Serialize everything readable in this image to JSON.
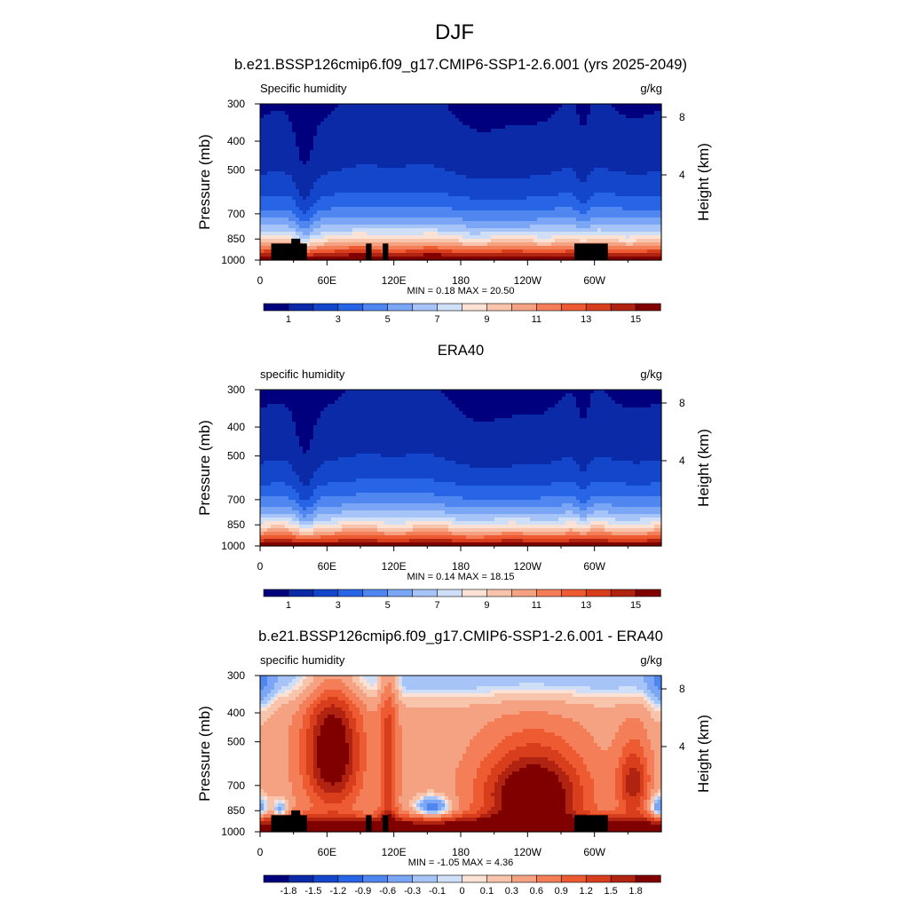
{
  "figure": {
    "title": "DJF"
  },
  "chart_data": [
    {
      "type": "heatmap",
      "title": "b.e21.BSSP126cmip6.f09_g17.CMIP6-SSP1-2.6.001 (yrs 2025-2049)",
      "left_label": "Specific humidity",
      "units": "g/kg",
      "ylabel": "Pressure (mb)",
      "ylabel_right": "Height (km)",
      "x_ticks": [
        "0",
        "60E",
        "120E",
        "180",
        "120W",
        "60W"
      ],
      "y_ticks": [
        "300",
        "400",
        "500",
        "700",
        "850",
        "1000"
      ],
      "y_ticks_right": [
        "8",
        "4"
      ],
      "minmax": "MIN =   0.18  MAX =  20.50",
      "colorbar_labels": [
        "1",
        "3",
        "5",
        "7",
        "9",
        "11",
        "13",
        "15"
      ],
      "field": "abs",
      "masked": true,
      "min": 0.18,
      "max": 20.5
    },
    {
      "type": "heatmap",
      "title": "ERA40",
      "left_label": "specific humidity",
      "units": "g/kg",
      "ylabel": "Pressure (mb)",
      "ylabel_right": "Height (km)",
      "x_ticks": [
        "0",
        "60E",
        "120E",
        "180",
        "120W",
        "60W"
      ],
      "y_ticks": [
        "300",
        "400",
        "500",
        "700",
        "850",
        "1000"
      ],
      "y_ticks_right": [
        "8",
        "4"
      ],
      "minmax": "MIN =   0.14  MAX =  18.15",
      "colorbar_labels": [
        "1",
        "3",
        "5",
        "7",
        "9",
        "11",
        "13",
        "15"
      ],
      "field": "abs",
      "masked": false,
      "min": 0.14,
      "max": 18.15
    },
    {
      "type": "heatmap",
      "title": "b.e21.BSSP126cmip6.f09_g17.CMIP6-SSP1-2.6.001 - ERA40",
      "left_label": "specific humidity",
      "units": "g/kg",
      "ylabel": "Pressure (mb)",
      "ylabel_right": "Height (km)",
      "x_ticks": [
        "0",
        "60E",
        "120E",
        "180",
        "120W",
        "60W"
      ],
      "y_ticks": [
        "300",
        "400",
        "500",
        "700",
        "850",
        "1000"
      ],
      "y_ticks_right": [
        "8",
        "4"
      ],
      "minmax": "MIN =  -1.05  MAX =   4.36",
      "colorbar_labels": [
        "-1.8",
        "-1.5",
        "-1.2",
        "-0.9",
        "-0.6",
        "-0.3",
        "-0.1",
        "0",
        "0.1",
        "0.3",
        "0.6",
        "0.9",
        "1.2",
        "1.5",
        "1.8"
      ],
      "field": "diff",
      "masked": true,
      "min": -1.05,
      "max": 4.36
    }
  ],
  "colors": {
    "palette": [
      "#00007f",
      "#0a2aa8",
      "#1446cc",
      "#2864e6",
      "#4f86f0",
      "#7aa6f5",
      "#a6c4f7",
      "#cfdff8",
      "#fbe2d4",
      "#f8c4ab",
      "#f5a282",
      "#f37e57",
      "#ee5a32",
      "#d93e1c",
      "#b02310",
      "#800000"
    ],
    "mask": "#000000"
  }
}
